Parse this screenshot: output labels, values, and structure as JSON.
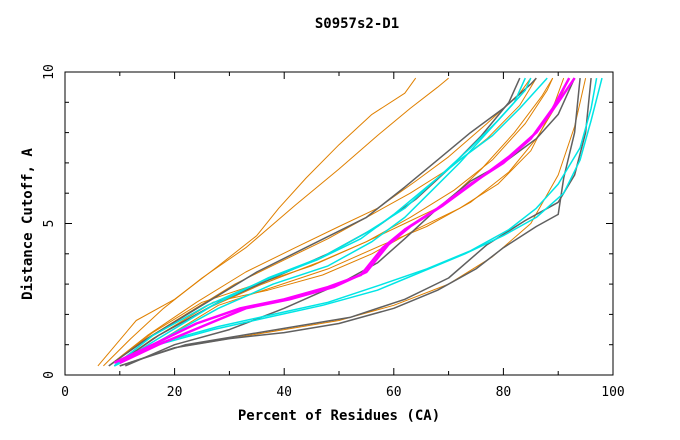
{
  "chart_data": {
    "type": "line",
    "title": "S0957s2-D1",
    "xlabel": "Percent of Residues (CA)",
    "ylabel": "Distance Cutoff, A",
    "xlim": [
      0,
      100
    ],
    "ylim": [
      0,
      10
    ],
    "x_ticks": [
      "0",
      "20",
      "40",
      "60",
      "80",
      "100"
    ],
    "y_ticks": [
      "0",
      "5",
      "10"
    ],
    "colors": {
      "orange": "#e08000",
      "gray": "#606060",
      "cyan": "#00e5e5",
      "magenta": "#ff00ff"
    },
    "series": [
      {
        "name": "orange-1",
        "color": "orange",
        "width": 1,
        "points": [
          [
            6,
            0.3
          ],
          [
            13,
            1.8
          ],
          [
            20,
            2.5
          ],
          [
            28,
            3.6
          ],
          [
            35,
            4.6
          ],
          [
            39,
            5.5
          ],
          [
            44,
            6.5
          ],
          [
            50,
            7.6
          ],
          [
            56,
            8.6
          ],
          [
            62,
            9.3
          ],
          [
            64,
            9.8
          ]
        ]
      },
      {
        "name": "orange-2",
        "color": "orange",
        "width": 1,
        "points": [
          [
            7,
            0.3
          ],
          [
            12,
            1.2
          ],
          [
            18,
            2.2
          ],
          [
            25,
            3.2
          ],
          [
            33,
            4.2
          ],
          [
            42,
            5.6
          ],
          [
            50,
            6.8
          ],
          [
            57,
            7.9
          ],
          [
            63,
            8.8
          ],
          [
            68,
            9.5
          ],
          [
            70,
            9.8
          ]
        ]
      },
      {
        "name": "orange-3",
        "color": "orange",
        "width": 1,
        "points": [
          [
            8,
            0.3
          ],
          [
            15,
            1.3
          ],
          [
            24,
            2.4
          ],
          [
            33,
            3.4
          ],
          [
            42,
            4.2
          ],
          [
            50,
            4.9
          ],
          [
            57,
            5.5
          ],
          [
            64,
            6.4
          ],
          [
            70,
            7.2
          ],
          [
            77,
            8.3
          ],
          [
            83,
            9.3
          ],
          [
            85,
            9.8
          ]
        ]
      },
      {
        "name": "orange-4",
        "color": "orange",
        "width": 1,
        "points": [
          [
            8,
            0.3
          ],
          [
            16,
            1.4
          ],
          [
            25,
            2.4
          ],
          [
            35,
            3.0
          ],
          [
            45,
            3.6
          ],
          [
            55,
            4.4
          ],
          [
            62,
            5.0
          ],
          [
            69,
            5.6
          ],
          [
            76,
            6.8
          ],
          [
            82,
            8.0
          ],
          [
            87,
            9.2
          ],
          [
            89,
            9.8
          ]
        ]
      },
      {
        "name": "orange-5",
        "color": "orange",
        "width": 1,
        "points": [
          [
            9,
            0.3
          ],
          [
            17,
            1.3
          ],
          [
            27,
            2.4
          ],
          [
            37,
            2.8
          ],
          [
            47,
            3.3
          ],
          [
            56,
            4.0
          ],
          [
            64,
            4.8
          ],
          [
            72,
            5.5
          ],
          [
            79,
            6.3
          ],
          [
            85,
            7.4
          ],
          [
            89,
            8.8
          ],
          [
            91,
            9.8
          ]
        ]
      },
      {
        "name": "orange-6",
        "color": "orange",
        "width": 1,
        "points": [
          [
            9,
            0.3
          ],
          [
            18,
            1.2
          ],
          [
            28,
            2.3
          ],
          [
            38,
            2.9
          ],
          [
            48,
            3.5
          ],
          [
            58,
            4.3
          ],
          [
            66,
            4.9
          ],
          [
            74,
            5.7
          ],
          [
            81,
            6.7
          ],
          [
            86,
            7.8
          ],
          [
            90,
            9.0
          ],
          [
            92,
            9.8
          ]
        ]
      },
      {
        "name": "orange-7",
        "color": "orange",
        "width": 1,
        "points": [
          [
            10,
            0.3
          ],
          [
            20,
            0.9
          ],
          [
            30,
            1.2
          ],
          [
            40,
            1.5
          ],
          [
            50,
            1.8
          ],
          [
            60,
            2.3
          ],
          [
            70,
            3.0
          ],
          [
            78,
            3.9
          ],
          [
            85,
            5.0
          ],
          [
            90,
            6.6
          ],
          [
            93,
            8.2
          ],
          [
            95,
            9.8
          ]
        ]
      },
      {
        "name": "orange-8",
        "color": "orange",
        "width": 1,
        "points": [
          [
            8,
            0.3
          ],
          [
            14,
            1.1
          ],
          [
            22,
            2.0
          ],
          [
            31,
            3.0
          ],
          [
            40,
            3.8
          ],
          [
            48,
            4.5
          ],
          [
            56,
            5.3
          ],
          [
            63,
            6.0
          ],
          [
            70,
            6.8
          ],
          [
            77,
            7.8
          ],
          [
            83,
            8.9
          ],
          [
            86,
            9.8
          ]
        ]
      },
      {
        "name": "orange-9",
        "color": "orange",
        "width": 1,
        "points": [
          [
            9,
            0.3
          ],
          [
            16,
            1.2
          ],
          [
            26,
            2.2
          ],
          [
            36,
            3.0
          ],
          [
            46,
            3.7
          ],
          [
            55,
            4.4
          ],
          [
            63,
            5.2
          ],
          [
            71,
            6.1
          ],
          [
            78,
            7.1
          ],
          [
            84,
            8.3
          ],
          [
            88,
            9.4
          ],
          [
            89,
            9.8
          ]
        ]
      },
      {
        "name": "gray-1",
        "color": "gray",
        "width": 1.5,
        "points": [
          [
            8,
            0.3
          ],
          [
            15,
            1.2
          ],
          [
            25,
            2.3
          ],
          [
            35,
            3.4
          ],
          [
            45,
            4.3
          ],
          [
            55,
            5.2
          ],
          [
            62,
            6.2
          ],
          [
            68,
            7.1
          ],
          [
            74,
            8.0
          ],
          [
            80,
            8.8
          ],
          [
            85,
            9.6
          ],
          [
            86,
            9.8
          ]
        ]
      },
      {
        "name": "gray-2",
        "color": "gray",
        "width": 1.5,
        "points": [
          [
            11,
            0.3
          ],
          [
            20,
            1.0
          ],
          [
            30,
            1.5
          ],
          [
            40,
            2.2
          ],
          [
            50,
            3.0
          ],
          [
            57,
            3.7
          ],
          [
            62,
            4.5
          ],
          [
            68,
            5.5
          ],
          [
            74,
            6.4
          ],
          [
            80,
            7.0
          ],
          [
            86,
            7.8
          ],
          [
            90,
            8.6
          ],
          [
            93,
            9.8
          ]
        ]
      },
      {
        "name": "gray-3",
        "color": "gray",
        "width": 1.5,
        "points": [
          [
            10,
            0.3
          ],
          [
            20,
            0.9
          ],
          [
            30,
            1.2
          ],
          [
            40,
            1.4
          ],
          [
            50,
            1.7
          ],
          [
            60,
            2.2
          ],
          [
            68,
            2.8
          ],
          [
            75,
            3.5
          ],
          [
            80,
            4.2
          ],
          [
            86,
            4.9
          ],
          [
            90,
            5.3
          ],
          [
            91,
            6.5
          ],
          [
            93,
            8.0
          ],
          [
            94,
            9.8
          ]
        ]
      },
      {
        "name": "gray-4",
        "color": "gray",
        "width": 1.5,
        "points": [
          [
            10,
            0.3
          ],
          [
            22,
            1.0
          ],
          [
            32,
            1.3
          ],
          [
            42,
            1.6
          ],
          [
            52,
            1.9
          ],
          [
            62,
            2.5
          ],
          [
            70,
            3.2
          ],
          [
            77,
            4.3
          ],
          [
            84,
            5.1
          ],
          [
            90,
            5.7
          ],
          [
            93,
            6.6
          ],
          [
            95,
            8.0
          ],
          [
            96,
            9.8
          ]
        ]
      },
      {
        "name": "gray-5",
        "color": "gray",
        "width": 1.5,
        "points": [
          [
            9,
            0.3
          ],
          [
            17,
            1.3
          ],
          [
            28,
            2.4
          ],
          [
            38,
            3.2
          ],
          [
            48,
            4.0
          ],
          [
            57,
            4.9
          ],
          [
            64,
            5.8
          ],
          [
            70,
            6.8
          ],
          [
            76,
            7.9
          ],
          [
            81,
            9.0
          ],
          [
            83,
            9.8
          ]
        ]
      },
      {
        "name": "cyan-1",
        "color": "cyan",
        "width": 1.5,
        "points": [
          [
            9,
            0.3
          ],
          [
            18,
            1.1
          ],
          [
            28,
            1.6
          ],
          [
            38,
            2.0
          ],
          [
            48,
            2.4
          ],
          [
            58,
            3.0
          ],
          [
            66,
            3.5
          ],
          [
            74,
            4.1
          ],
          [
            81,
            4.8
          ],
          [
            86,
            5.5
          ],
          [
            90,
            6.3
          ],
          [
            94,
            7.5
          ],
          [
            96,
            8.8
          ],
          [
            97,
            9.8
          ]
        ]
      },
      {
        "name": "cyan-2",
        "color": "cyan",
        "width": 1.5,
        "points": [
          [
            9,
            0.3
          ],
          [
            17,
            1.0
          ],
          [
            27,
            1.5
          ],
          [
            37,
            1.9
          ],
          [
            47,
            2.3
          ],
          [
            57,
            2.8
          ],
          [
            65,
            3.4
          ],
          [
            73,
            4.0
          ],
          [
            80,
            4.6
          ],
          [
            86,
            5.2
          ],
          [
            91,
            6.0
          ],
          [
            94,
            7.1
          ],
          [
            96,
            8.4
          ],
          [
            98,
            9.8
          ]
        ]
      },
      {
        "name": "cyan-3",
        "color": "cyan",
        "width": 1.5,
        "points": [
          [
            9,
            0.3
          ],
          [
            16,
            1.3
          ],
          [
            26,
            2.3
          ],
          [
            36,
            3.1
          ],
          [
            46,
            3.8
          ],
          [
            54,
            4.5
          ],
          [
            60,
            5.3
          ],
          [
            66,
            6.2
          ],
          [
            72,
            7.1
          ],
          [
            78,
            7.9
          ],
          [
            83,
            8.8
          ],
          [
            87,
            9.6
          ],
          [
            88,
            9.8
          ]
        ]
      },
      {
        "name": "cyan-4",
        "color": "cyan",
        "width": 1.5,
        "points": [
          [
            9,
            0.3
          ],
          [
            17,
            1.2
          ],
          [
            27,
            2.3
          ],
          [
            37,
            3.2
          ],
          [
            47,
            3.9
          ],
          [
            55,
            4.7
          ],
          [
            62,
            5.5
          ],
          [
            68,
            6.5
          ],
          [
            74,
            7.5
          ],
          [
            79,
            8.4
          ],
          [
            84,
            9.4
          ],
          [
            85,
            9.8
          ]
        ]
      },
      {
        "name": "cyan-5",
        "color": "cyan",
        "width": 1.5,
        "points": [
          [
            9,
            0.3
          ],
          [
            18,
            1.2
          ],
          [
            28,
            2.2
          ],
          [
            38,
            3.0
          ],
          [
            48,
            3.6
          ],
          [
            56,
            4.4
          ],
          [
            62,
            5.2
          ],
          [
            67,
            6.1
          ],
          [
            72,
            7.0
          ],
          [
            77,
            8.0
          ],
          [
            82,
            9.0
          ],
          [
            84,
            9.8
          ]
        ]
      },
      {
        "name": "magenta-1",
        "color": "magenta",
        "width": 2.5,
        "points": [
          [
            9,
            0.4
          ],
          [
            16,
            1.0
          ],
          [
            24,
            1.7
          ],
          [
            32,
            2.2
          ],
          [
            40,
            2.5
          ],
          [
            48,
            2.9
          ],
          [
            54,
            3.3
          ],
          [
            58,
            4.2
          ],
          [
            62,
            4.8
          ],
          [
            68,
            5.5
          ],
          [
            74,
            6.3
          ],
          [
            80,
            7.0
          ],
          [
            85,
            7.8
          ],
          [
            89,
            8.8
          ],
          [
            92,
            9.8
          ]
        ]
      },
      {
        "name": "magenta-2",
        "color": "magenta",
        "width": 2.5,
        "points": [
          [
            10,
            0.4
          ],
          [
            17,
            1.0
          ],
          [
            25,
            1.6
          ],
          [
            33,
            2.2
          ],
          [
            41,
            2.5
          ],
          [
            49,
            2.9
          ],
          [
            55,
            3.4
          ],
          [
            59,
            4.3
          ],
          [
            63,
            4.9
          ],
          [
            69,
            5.6
          ],
          [
            75,
            6.4
          ],
          [
            81,
            7.2
          ],
          [
            86,
            8.0
          ],
          [
            90,
            9.0
          ],
          [
            93,
            9.8
          ]
        ]
      }
    ]
  }
}
